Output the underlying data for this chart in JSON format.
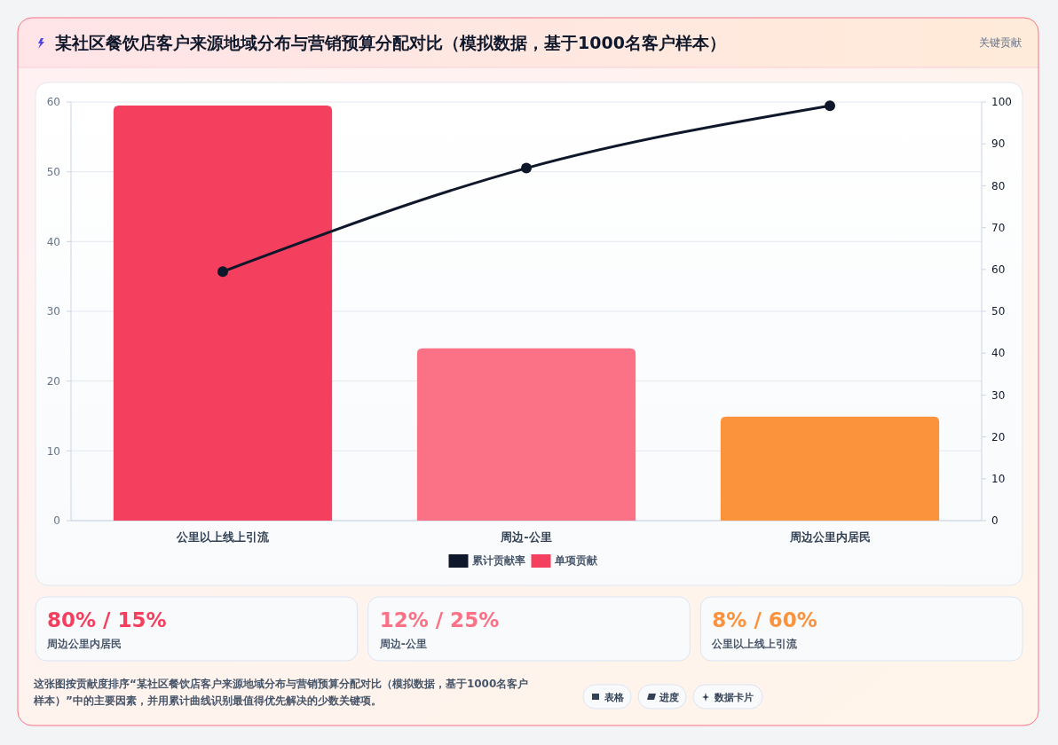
{
  "chart_data": [
    {
      "type": "bar",
      "title": "某社区餐饮店客户来源地域分布与营销预算分配对比（模拟数据，基于1000名客户样本）",
      "categories": [
        "公里以上线上引流",
        "周边-公里",
        "周边公里内居民"
      ],
      "series": [
        {
          "name": "累计贡献率",
          "type": "line",
          "axis": "y2",
          "color": "#0f172a",
          "values": [
            59.5,
            84.2,
            99.1
          ]
        },
        {
          "name": "单项贡献",
          "type": "bar",
          "color": "#f43f5e",
          "colors": [
            "#f43f5e",
            "#fb7185",
            "#fb923c"
          ],
          "values": [
            59.5,
            24.7,
            14.9
          ]
        }
      ],
      "ylim": [
        0,
        60
      ],
      "yticks": [
        0,
        10,
        20,
        30,
        40,
        50,
        60
      ],
      "y2lim": [
        0,
        100
      ],
      "y2ticks": [
        0,
        10,
        20,
        30,
        40,
        50,
        60,
        70,
        80,
        90,
        100
      ],
      "grid": "y",
      "legend": "bottom",
      "marker": "circle",
      "annotations": [
        "关键贡献",
        "这张图按贡献度排序“某社区餐饮店客户来源地域分布与营销预算分配对比（模拟数据，基于1000名客户样本）”中的主要因素，并用累计曲线识别最值得优先解决的少数关键项。",
        "表格",
        "进度",
        "数据卡片"
      ]
    },
    {
      "type": "other",
      "annotations": [
        "80% / 15%",
        "周边公里内居民",
        "12% / 25%",
        "周边-公里",
        "8% / 60%",
        "公里以上线上引流"
      ]
    }
  ]
}
